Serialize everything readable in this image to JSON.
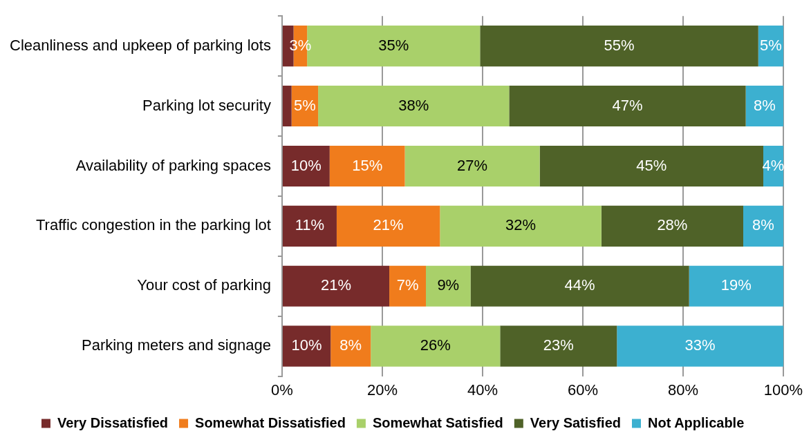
{
  "chart_data": {
    "type": "bar",
    "orientation": "horizontal",
    "stacked": true,
    "categories": [
      "Cleanliness and upkeep of parking lots",
      "Parking lot security",
      "Availability of parking spaces",
      "Traffic congestion in the parking lot",
      "Your cost of parking",
      "Parking meters and signage"
    ],
    "series": [
      {
        "name": "Very Dissatisfied",
        "color": "#772b2b",
        "values": [
          2.3,
          1.9,
          9.5,
          10.9,
          21.4,
          9.7
        ],
        "value_labels": [
          null,
          null,
          "10%",
          "11%",
          "21%",
          "10%"
        ]
      },
      {
        "name": "Somewhat Dissatisfied",
        "color": "#f07c1c",
        "values": [
          2.7,
          5.3,
          15,
          20.6,
          7.3,
          8.0
        ],
        "value_labels": [
          "3%",
          "5%",
          "15%",
          "21%",
          "7%",
          "8%"
        ]
      },
      {
        "name": "Somewhat Satisfied",
        "color": "#a9d06a",
        "values": [
          34.5,
          38.1,
          26.9,
          32.2,
          8.9,
          25.8
        ],
        "value_labels": [
          "35%",
          "38%",
          "27%",
          "32%",
          "9%",
          "26%"
        ]
      },
      {
        "name": "Very Satisfied",
        "color": "#4f6228",
        "values": [
          55.5,
          47.2,
          44.6,
          28.3,
          43.6,
          23.3
        ],
        "value_labels": [
          "55%",
          "47%",
          "45%",
          "28%",
          "44%",
          "23%"
        ]
      },
      {
        "name": "Not Applicable",
        "color": "#3cb0d0",
        "values": [
          5,
          7.5,
          4.0,
          8.0,
          18.8,
          33.2
        ],
        "value_labels": [
          "5%",
          "8%",
          "4%",
          "8%",
          "19%",
          "33%"
        ]
      }
    ],
    "xlim": [
      0,
      100
    ],
    "xticks": [
      {
        "value": 0,
        "label": "0%"
      },
      {
        "value": 20,
        "label": "20%"
      },
      {
        "value": 40,
        "label": "40%"
      },
      {
        "value": 60,
        "label": "60%"
      },
      {
        "value": 80,
        "label": "80%"
      },
      {
        "value": 100,
        "label": "100%"
      }
    ],
    "grid": "x",
    "legend": "bottom"
  }
}
